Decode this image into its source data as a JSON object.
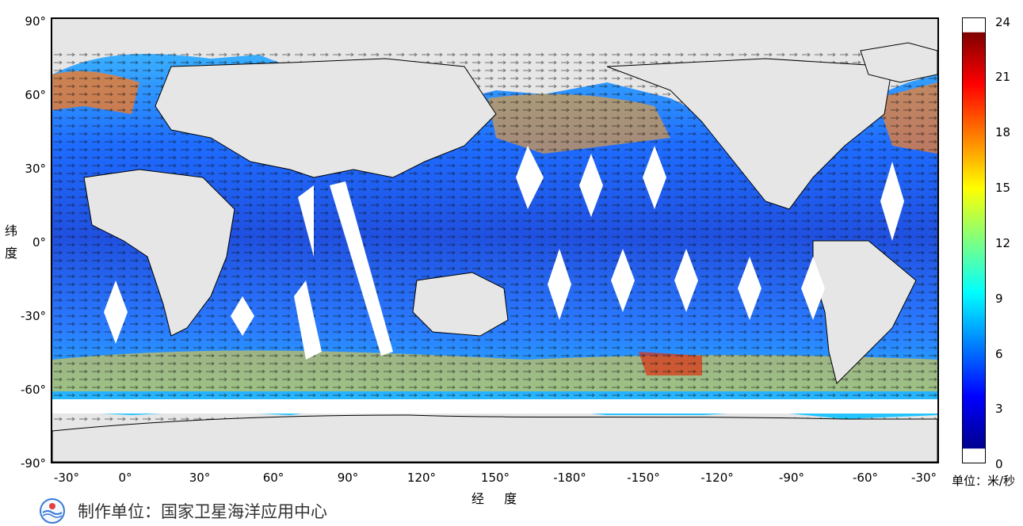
{
  "map": {
    "y_ticks": [
      "90°",
      "60°",
      "30°",
      "0°",
      "-30°",
      "-60°",
      "-90°"
    ],
    "x_ticks": [
      "-30°",
      "0°",
      "30°",
      "60°",
      "90°",
      "120°",
      "150°",
      "-180°",
      "-150°",
      "-120°",
      "-90°",
      "-60°",
      "-30°"
    ],
    "y_title": [
      "纬",
      "度"
    ],
    "x_title": "经 度"
  },
  "colorbar": {
    "ticks": [
      "24",
      "21",
      "18",
      "15",
      "12",
      "9",
      "6",
      "3",
      "0"
    ],
    "unit_label": "单位：米/秒",
    "colormap": "jet"
  },
  "footer": {
    "credit": "制作单位：国家卫星海洋应用中心",
    "logo_icon": "soa-logo-icon"
  },
  "colors": {
    "land": "#e6e6e6",
    "no_data": "#ffffff",
    "frame": "#000000"
  }
}
